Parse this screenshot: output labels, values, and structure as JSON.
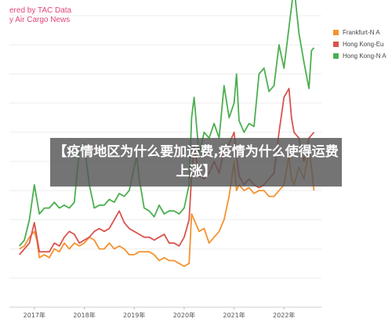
{
  "source_lines": [
    "ered by TAC Data",
    "y Air Cargo News"
  ],
  "overlay_title": "【疫情地区为什么要加运费,疫情为什么使得运费上涨】",
  "chart_data": {
    "type": "line",
    "x_ticks": [
      "2017年",
      "2018年",
      "2019年",
      "2020年",
      "2021年",
      "2022年"
    ],
    "ylim": [
      0,
      100
    ],
    "grid": true,
    "legend_position": "top-right",
    "series": [
      {
        "name": "Frankfurt-N A",
        "color": "#f5922f",
        "values": [
          [
            2016.7,
            20
          ],
          [
            2016.8,
            21
          ],
          [
            2016.9,
            24
          ],
          [
            2017.0,
            26
          ],
          [
            2017.05,
            23
          ],
          [
            2017.1,
            17
          ],
          [
            2017.2,
            18
          ],
          [
            2017.3,
            17
          ],
          [
            2017.4,
            20
          ],
          [
            2017.5,
            19
          ],
          [
            2017.6,
            22
          ],
          [
            2017.7,
            20
          ],
          [
            2017.8,
            22
          ],
          [
            2017.9,
            21
          ],
          [
            2018.0,
            22
          ],
          [
            2018.1,
            24
          ],
          [
            2018.2,
            23
          ],
          [
            2018.3,
            20
          ],
          [
            2018.4,
            20
          ],
          [
            2018.5,
            22
          ],
          [
            2018.6,
            20
          ],
          [
            2018.7,
            21
          ],
          [
            2018.8,
            20
          ],
          [
            2018.9,
            18
          ],
          [
            2019.0,
            18
          ],
          [
            2019.1,
            19
          ],
          [
            2019.2,
            19
          ],
          [
            2019.3,
            19
          ],
          [
            2019.4,
            18
          ],
          [
            2019.5,
            16
          ],
          [
            2019.6,
            17
          ],
          [
            2019.7,
            16
          ],
          [
            2019.8,
            16
          ],
          [
            2019.9,
            15
          ],
          [
            2020.0,
            14
          ],
          [
            2020.1,
            15
          ],
          [
            2020.15,
            32
          ],
          [
            2020.2,
            30
          ],
          [
            2020.3,
            26
          ],
          [
            2020.4,
            27
          ],
          [
            2020.5,
            22
          ],
          [
            2020.6,
            24
          ],
          [
            2020.7,
            26
          ],
          [
            2020.8,
            30
          ],
          [
            2020.9,
            38
          ],
          [
            2021.0,
            50
          ],
          [
            2021.05,
            40
          ],
          [
            2021.1,
            42
          ],
          [
            2021.2,
            40
          ],
          [
            2021.3,
            41
          ],
          [
            2021.4,
            39
          ],
          [
            2021.5,
            40
          ],
          [
            2021.6,
            40
          ],
          [
            2021.7,
            38
          ],
          [
            2021.8,
            38
          ],
          [
            2021.9,
            40
          ],
          [
            2022.0,
            42
          ],
          [
            2022.1,
            52
          ],
          [
            2022.15,
            44
          ],
          [
            2022.2,
            42
          ],
          [
            2022.3,
            48
          ],
          [
            2022.4,
            44
          ],
          [
            2022.5,
            54
          ],
          [
            2022.55,
            48
          ],
          [
            2022.6,
            40
          ]
        ]
      },
      {
        "name": "Hong Kong-Eu",
        "color": "#d9534f",
        "values": [
          [
            2016.7,
            18
          ],
          [
            2016.8,
            20
          ],
          [
            2016.9,
            22
          ],
          [
            2017.0,
            29
          ],
          [
            2017.05,
            24
          ],
          [
            2017.1,
            19
          ],
          [
            2017.2,
            19
          ],
          [
            2017.3,
            19
          ],
          [
            2017.4,
            22
          ],
          [
            2017.5,
            21
          ],
          [
            2017.6,
            24
          ],
          [
            2017.7,
            26
          ],
          [
            2017.8,
            25
          ],
          [
            2017.9,
            22
          ],
          [
            2018.0,
            23
          ],
          [
            2018.1,
            24
          ],
          [
            2018.2,
            26
          ],
          [
            2018.3,
            27
          ],
          [
            2018.4,
            26
          ],
          [
            2018.5,
            27
          ],
          [
            2018.6,
            30
          ],
          [
            2018.7,
            33
          ],
          [
            2018.8,
            29
          ],
          [
            2018.9,
            27
          ],
          [
            2019.0,
            26
          ],
          [
            2019.1,
            25
          ],
          [
            2019.2,
            24
          ],
          [
            2019.3,
            24
          ],
          [
            2019.4,
            23
          ],
          [
            2019.5,
            24
          ],
          [
            2019.6,
            25
          ],
          [
            2019.7,
            22
          ],
          [
            2019.8,
            22
          ],
          [
            2019.9,
            21
          ],
          [
            2020.0,
            24
          ],
          [
            2020.1,
            30
          ],
          [
            2020.15,
            45
          ],
          [
            2020.2,
            55
          ],
          [
            2020.3,
            45
          ],
          [
            2020.4,
            44
          ],
          [
            2020.5,
            46
          ],
          [
            2020.6,
            50
          ],
          [
            2020.7,
            46
          ],
          [
            2020.8,
            54
          ],
          [
            2020.9,
            56
          ],
          [
            2021.0,
            60
          ],
          [
            2021.05,
            52
          ],
          [
            2021.1,
            45
          ],
          [
            2021.2,
            42
          ],
          [
            2021.3,
            44
          ],
          [
            2021.4,
            42
          ],
          [
            2021.5,
            41
          ],
          [
            2021.6,
            42
          ],
          [
            2021.7,
            44
          ],
          [
            2021.8,
            46
          ],
          [
            2021.9,
            60
          ],
          [
            2022.0,
            72
          ],
          [
            2022.1,
            75
          ],
          [
            2022.15,
            65
          ],
          [
            2022.2,
            60
          ],
          [
            2022.3,
            58
          ],
          [
            2022.4,
            50
          ],
          [
            2022.5,
            58
          ],
          [
            2022.6,
            60
          ]
        ]
      },
      {
        "name": "Hong Kong-N A",
        "color": "#4caf50",
        "values": [
          [
            2016.7,
            21
          ],
          [
            2016.8,
            23
          ],
          [
            2016.9,
            30
          ],
          [
            2017.0,
            42
          ],
          [
            2017.1,
            32
          ],
          [
            2017.2,
            34
          ],
          [
            2017.3,
            34
          ],
          [
            2017.4,
            36
          ],
          [
            2017.5,
            34
          ],
          [
            2017.6,
            35
          ],
          [
            2017.7,
            34
          ],
          [
            2017.8,
            36
          ],
          [
            2017.9,
            54
          ],
          [
            2018.0,
            56
          ],
          [
            2018.1,
            42
          ],
          [
            2018.2,
            34
          ],
          [
            2018.3,
            35
          ],
          [
            2018.4,
            35
          ],
          [
            2018.5,
            37
          ],
          [
            2018.6,
            36
          ],
          [
            2018.7,
            39
          ],
          [
            2018.8,
            38
          ],
          [
            2018.9,
            40
          ],
          [
            2019.0,
            48
          ],
          [
            2019.05,
            52
          ],
          [
            2019.1,
            44
          ],
          [
            2019.2,
            34
          ],
          [
            2019.3,
            33
          ],
          [
            2019.4,
            31
          ],
          [
            2019.5,
            35
          ],
          [
            2019.6,
            32
          ],
          [
            2019.7,
            33
          ],
          [
            2019.8,
            33
          ],
          [
            2019.9,
            32
          ],
          [
            2020.0,
            34
          ],
          [
            2020.1,
            42
          ],
          [
            2020.15,
            65
          ],
          [
            2020.2,
            72
          ],
          [
            2020.3,
            52
          ],
          [
            2020.4,
            60
          ],
          [
            2020.5,
            58
          ],
          [
            2020.6,
            63
          ],
          [
            2020.7,
            58
          ],
          [
            2020.8,
            76
          ],
          [
            2020.9,
            65
          ],
          [
            2021.0,
            70
          ],
          [
            2021.05,
            80
          ],
          [
            2021.1,
            64
          ],
          [
            2021.2,
            60
          ],
          [
            2021.3,
            63
          ],
          [
            2021.4,
            62
          ],
          [
            2021.5,
            80
          ],
          [
            2021.6,
            82
          ],
          [
            2021.7,
            74
          ],
          [
            2021.8,
            76
          ],
          [
            2021.9,
            90
          ],
          [
            2022.0,
            82
          ],
          [
            2022.1,
            96
          ],
          [
            2022.2,
            110
          ],
          [
            2022.3,
            94
          ],
          [
            2022.4,
            84
          ],
          [
            2022.5,
            75
          ],
          [
            2022.55,
            88
          ],
          [
            2022.6,
            89
          ]
        ]
      }
    ]
  }
}
